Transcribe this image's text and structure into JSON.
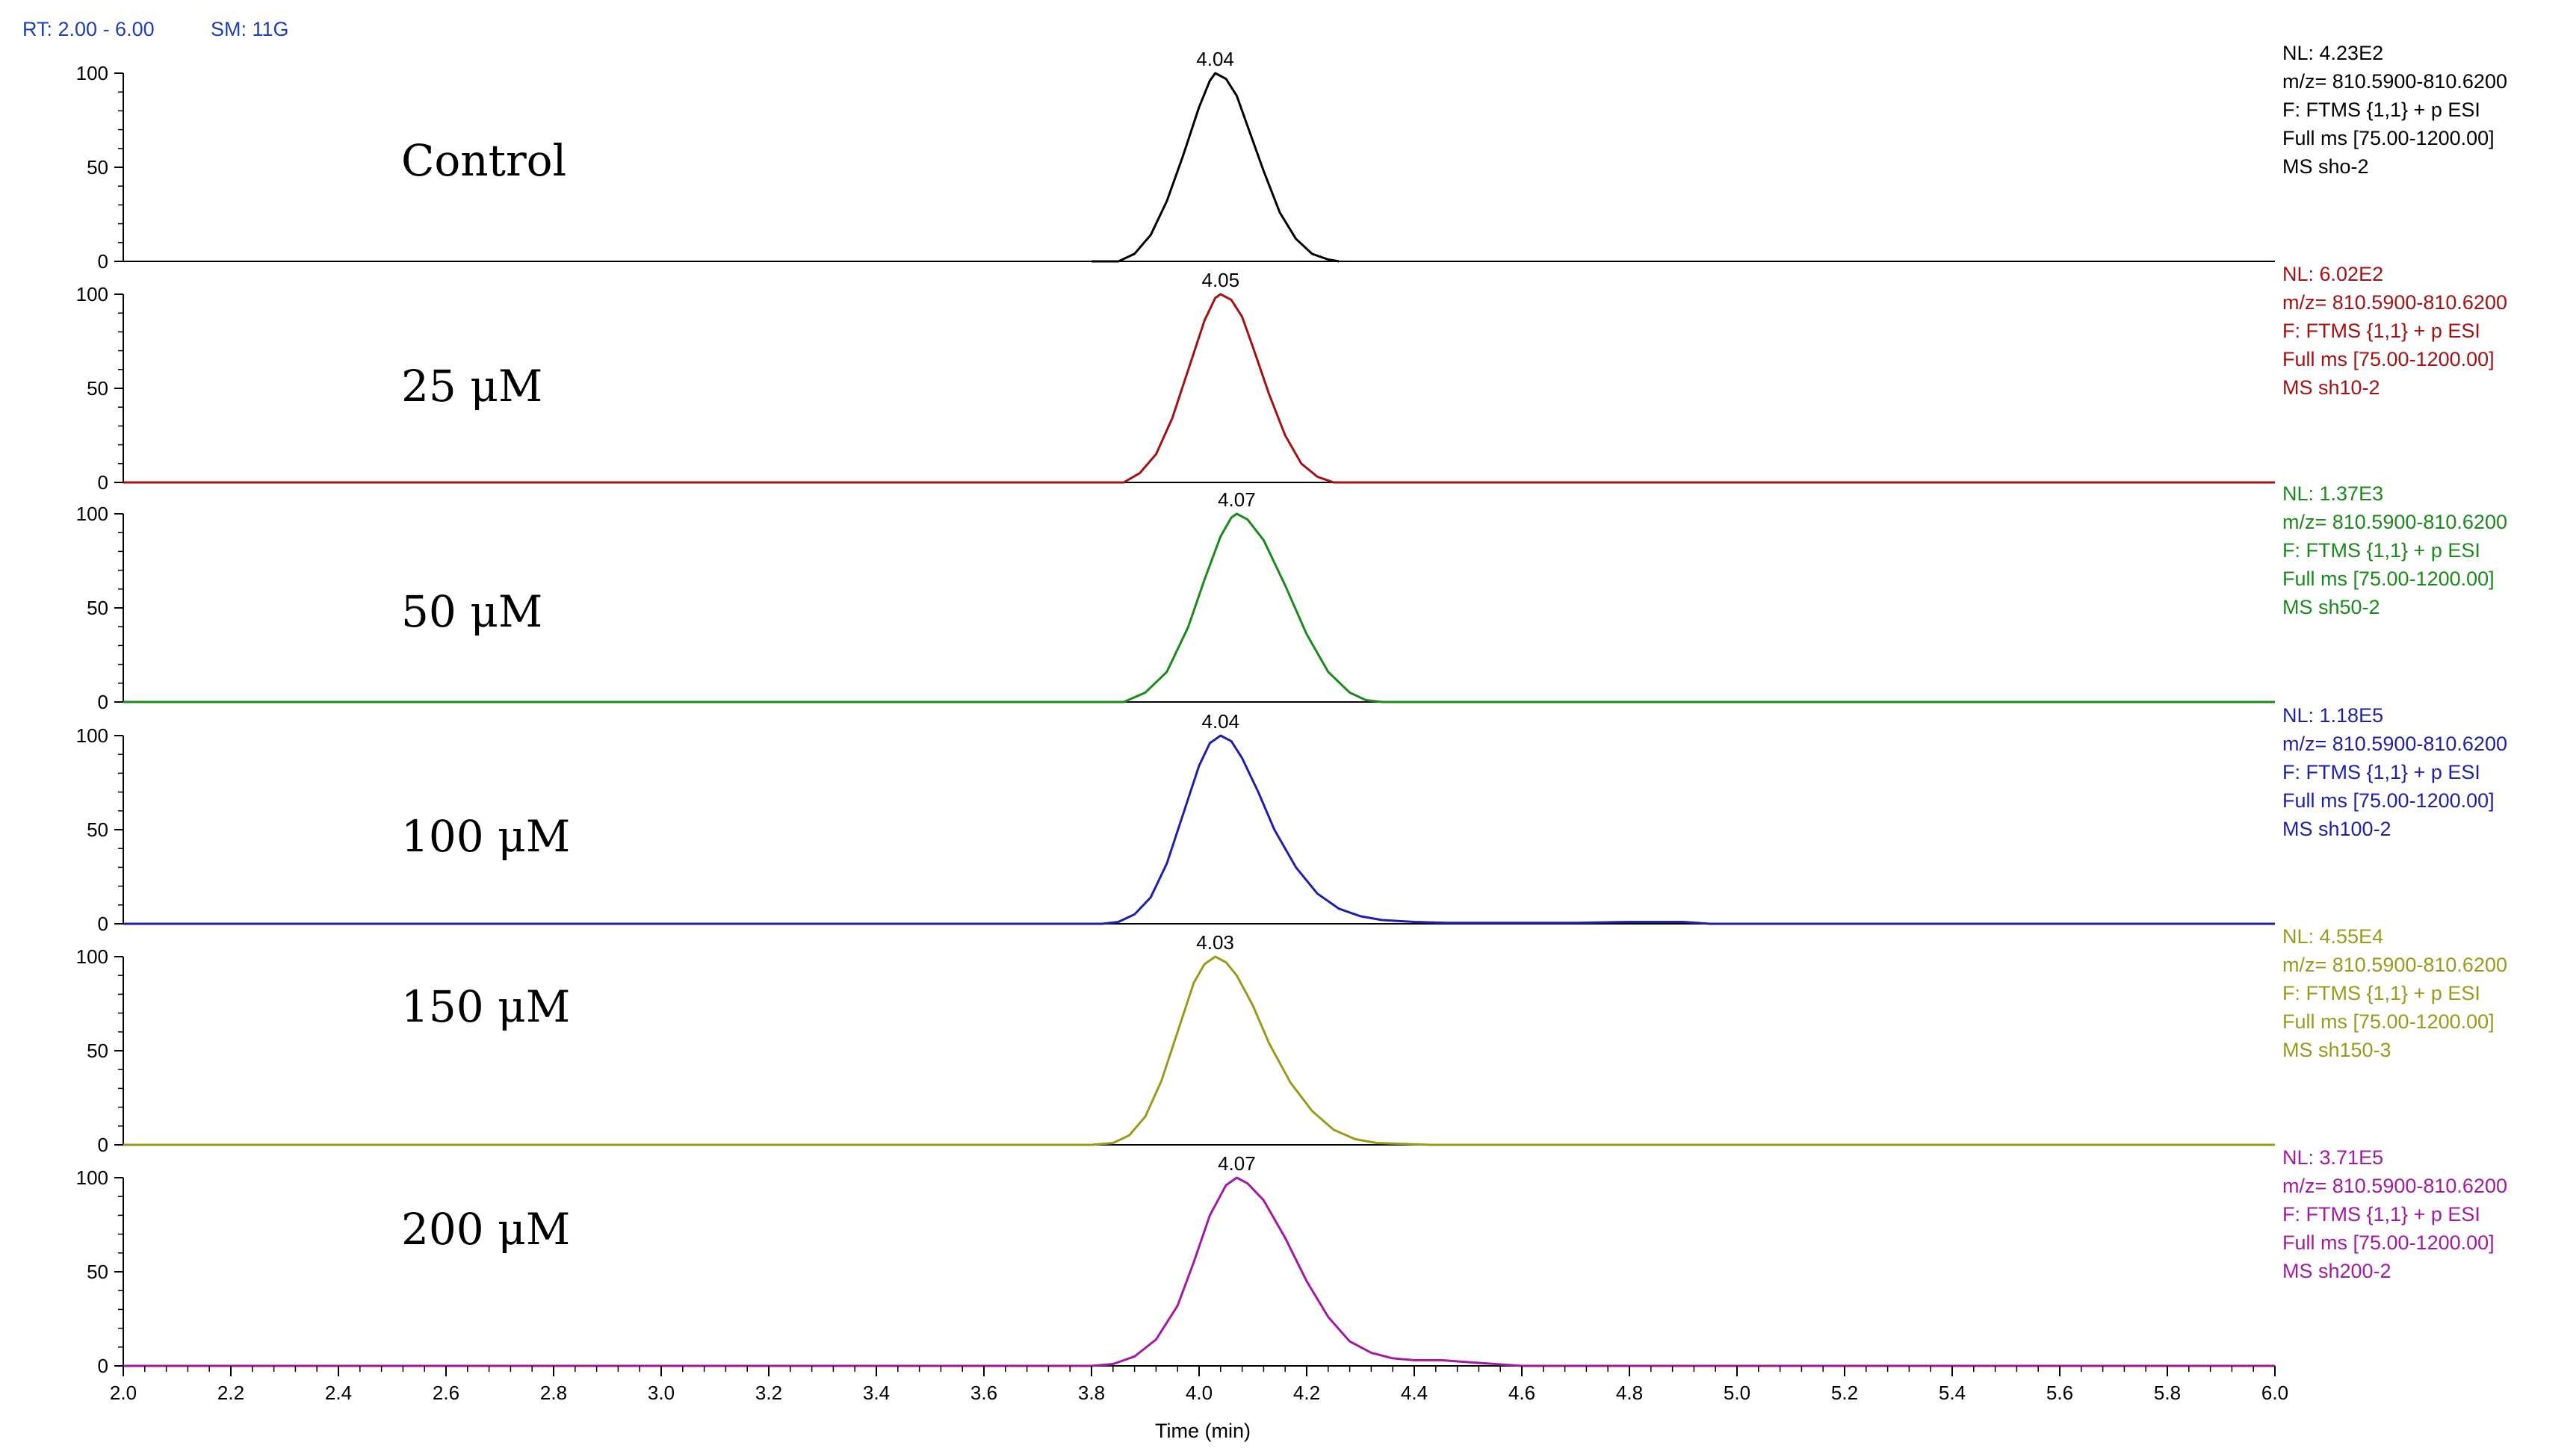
{
  "header": {
    "rt": "RT: 2.00 - 6.00",
    "sm": "SM: 11G"
  },
  "x_axis_label": "Time (min)",
  "chart_data": {
    "type": "line",
    "xlim": [
      2.0,
      6.0
    ],
    "ylim": [
      0,
      100
    ],
    "x_ticks": [
      "2.0",
      "2.2",
      "2.4",
      "2.6",
      "2.8",
      "3.0",
      "3.2",
      "3.4",
      "3.6",
      "3.8",
      "4.0",
      "4.2",
      "4.4",
      "4.6",
      "4.8",
      "5.0",
      "5.2",
      "5.4",
      "5.6",
      "5.8",
      "6.0"
    ],
    "y_ticks": [
      "0",
      "50",
      "100"
    ],
    "xlabel": "Time (min)",
    "panels": [
      {
        "condition": "Control",
        "color": "#000000",
        "peak_label": "4.04",
        "info": [
          "NL: 4.23E2",
          "m/z= 810.5900-810.6200",
          "F: FTMS {1,1} + p ESI",
          "Full ms [75.00-1200.00]",
          "MS sho-2"
        ],
        "x": [
          3.8,
          3.85,
          3.88,
          3.91,
          3.94,
          3.97,
          4.0,
          4.02,
          4.03,
          4.05,
          4.07,
          4.09,
          4.12,
          4.15,
          4.18,
          4.21,
          4.24,
          4.26
        ],
        "y": [
          0,
          0,
          4,
          14,
          32,
          56,
          82,
          96,
          100,
          97,
          88,
          72,
          48,
          26,
          12,
          4,
          1,
          0
        ],
        "baseline_from": 3.8,
        "baseline_to": 4.24
      },
      {
        "condition": "25 μM",
        "color": "#a31212",
        "peak_label": "4.05",
        "info": [
          "NL: 6.02E2",
          "m/z= 810.5900-810.6200",
          "F: FTMS {1,1} + p ESI",
          "Full ms [75.00-1200.00]",
          "MS sh10-2"
        ],
        "x": [
          2.0,
          3.8,
          3.86,
          3.89,
          3.92,
          3.95,
          3.98,
          4.01,
          4.03,
          4.04,
          4.06,
          4.08,
          4.1,
          4.13,
          4.16,
          4.19,
          4.22,
          4.25,
          4.27,
          6.0
        ],
        "y": [
          0,
          0,
          0,
          5,
          15,
          34,
          60,
          86,
          98,
          100,
          97,
          88,
          72,
          47,
          25,
          10,
          3,
          0,
          0,
          0
        ],
        "baseline_from": 2.0,
        "baseline_to": 6.0
      },
      {
        "condition": "50 μM",
        "color": "#1a8a1a",
        "peak_label": "4.07",
        "info": [
          "NL: 1.37E3",
          "m/z= 810.5900-810.6200",
          "F: FTMS {1,1} + p ESI",
          "Full ms [75.00-1200.00]",
          "MS sh50-2"
        ],
        "x": [
          2.0,
          3.82,
          3.86,
          3.9,
          3.94,
          3.98,
          4.01,
          4.04,
          4.06,
          4.07,
          4.09,
          4.12,
          4.16,
          4.2,
          4.24,
          4.28,
          4.31,
          4.34,
          6.0
        ],
        "y": [
          0,
          0,
          0,
          5,
          16,
          40,
          65,
          88,
          98,
          100,
          97,
          86,
          62,
          36,
          16,
          5,
          1,
          0,
          0
        ],
        "baseline_from": 2.0,
        "baseline_to": 6.0
      },
      {
        "condition": "100 μM",
        "color": "#1f1fa8",
        "peak_label": "4.04",
        "info": [
          "NL: 1.18E5",
          "m/z= 810.5900-810.6200",
          "F: FTMS {1,1} + p ESI",
          "Full ms [75.00-1200.00]",
          "MS sh100-2"
        ],
        "x": [
          2.0,
          3.82,
          3.85,
          3.88,
          3.91,
          3.94,
          3.97,
          4.0,
          4.02,
          4.04,
          4.06,
          4.08,
          4.11,
          4.14,
          4.18,
          4.22,
          4.26,
          4.3,
          4.34,
          4.4,
          4.46,
          4.7,
          4.8,
          4.9,
          4.95,
          6.0
        ],
        "y": [
          0,
          0,
          1,
          5,
          14,
          32,
          58,
          84,
          96,
          100,
          97,
          88,
          70,
          50,
          30,
          16,
          8,
          4,
          2,
          1,
          0.5,
          0.5,
          1,
          1,
          0,
          0
        ],
        "baseline_from": 2.0,
        "baseline_to": 6.0
      },
      {
        "condition": "150 μM",
        "color": "#9a9a1a",
        "peak_label": "4.03",
        "info": [
          "NL: 4.55E4",
          "m/z= 810.5900-810.6200",
          "F: FTMS {1,1} + p ESI",
          "Full ms [75.00-1200.00]",
          "MS sh150-3"
        ],
        "x": [
          2.0,
          3.8,
          3.84,
          3.87,
          3.9,
          3.93,
          3.96,
          3.99,
          4.01,
          4.03,
          4.05,
          4.07,
          4.1,
          4.13,
          4.17,
          4.21,
          4.25,
          4.29,
          4.33,
          4.38,
          4.43,
          6.0
        ],
        "y": [
          0,
          0,
          1,
          5,
          15,
          34,
          60,
          86,
          96,
          100,
          97,
          90,
          74,
          54,
          33,
          18,
          8,
          3,
          1,
          0.5,
          0,
          0
        ],
        "baseline_from": 2.0,
        "baseline_to": 6.0
      },
      {
        "condition": "200 μM",
        "color": "#a11aa1",
        "peak_label": "4.07",
        "info": [
          "NL: 3.71E5",
          "m/z= 810.5900-810.6200",
          "F: FTMS {1,1} + p ESI",
          "Full ms [75.00-1200.00]",
          "MS sh200-2"
        ],
        "x": [
          2.0,
          3.8,
          3.84,
          3.88,
          3.92,
          3.96,
          3.99,
          4.02,
          4.05,
          4.07,
          4.09,
          4.12,
          4.16,
          4.2,
          4.24,
          4.28,
          4.32,
          4.36,
          4.4,
          4.45,
          4.5,
          4.55,
          4.6,
          6.0
        ],
        "y": [
          0,
          0,
          1,
          5,
          14,
          32,
          55,
          80,
          96,
          100,
          97,
          88,
          68,
          45,
          26,
          13,
          7,
          4,
          3,
          3,
          2,
          1,
          0,
          0
        ],
        "baseline_from": 2.0,
        "baseline_to": 6.0
      }
    ]
  }
}
